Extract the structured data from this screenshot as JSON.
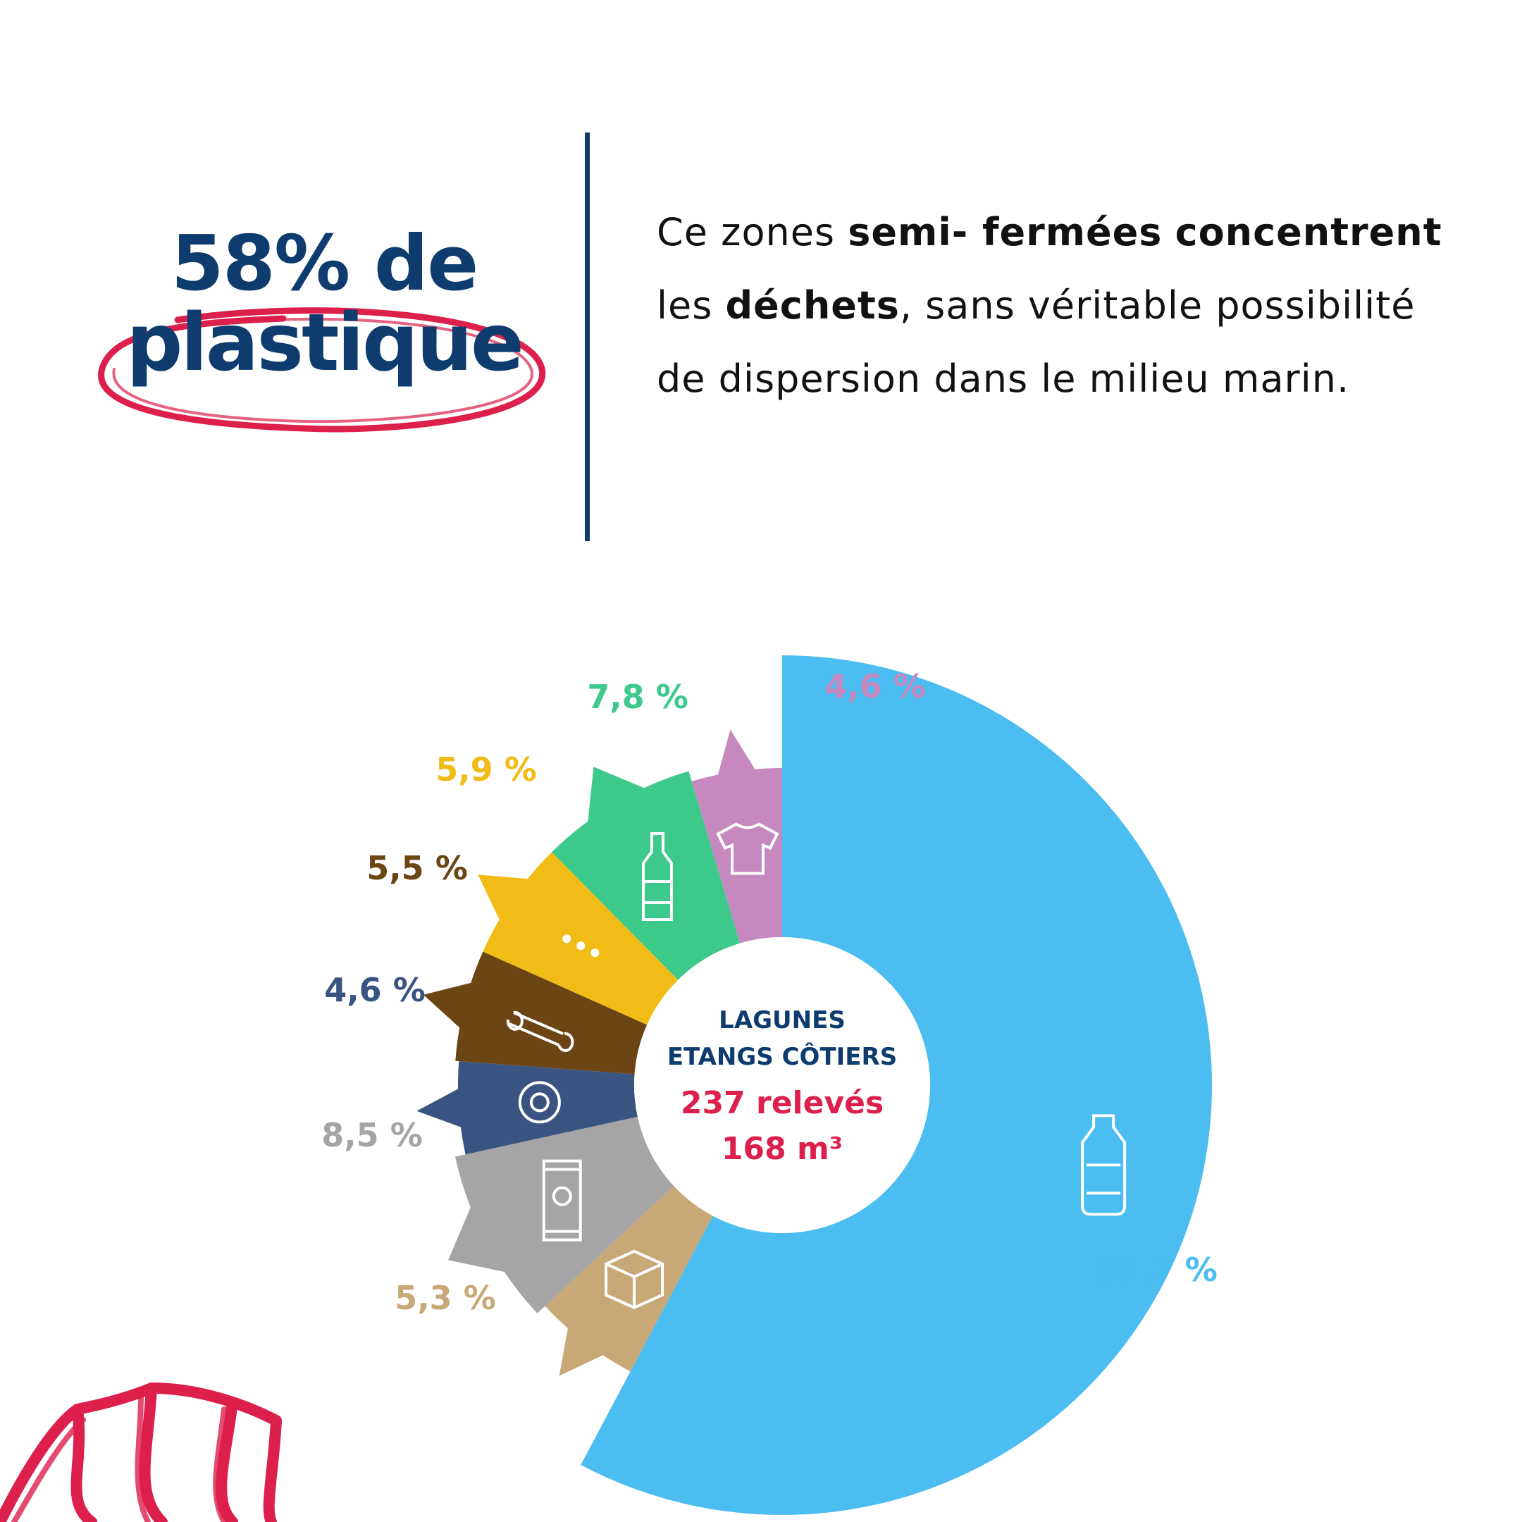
{
  "headline": {
    "line1": "58% de",
    "line2": "plastique"
  },
  "paragraph": {
    "p1": "Ce zones ",
    "b1": "semi- fermées",
    "p2": " ",
    "b2": "concentrent",
    "p3": " les ",
    "b3": "déchets",
    "p4": ", sans véritable possibilité de dispersion dans le milieu marin."
  },
  "center": {
    "line1": "LAGUNES",
    "line2": "ETANGS CÔTIERS",
    "line3": "237 relevés",
    "line4": "168 m³"
  },
  "colors": {
    "navy": "#0e3c6e",
    "red": "#dc1f4b"
  },
  "chart_data": {
    "type": "pie",
    "donut": true,
    "start": "top",
    "direction": "clockwise",
    "slices": [
      {
        "label": "57,7 %",
        "value": 57.7,
        "color": "#4bbdf0",
        "icon": "plastic-bottle-icon"
      },
      {
        "label": "5,3 %",
        "value": 5.3,
        "color": "#c9a877",
        "icon": "cardboard-box-icon"
      },
      {
        "label": "8,5 %",
        "value": 8.5,
        "color": "#a5a5a5",
        "icon": "can-icon"
      },
      {
        "label": "4,6 %",
        "value": 4.6,
        "color": "#3a5482",
        "icon": "tire-icon"
      },
      {
        "label": "5,5 %",
        "value": 5.5,
        "color": "#6b4514",
        "icon": "wood-log-icon"
      },
      {
        "label": "5,9 %",
        "value": 5.9,
        "color": "#f2bc17",
        "icon": "more-dots-icon"
      },
      {
        "label": "7,8 %",
        "value": 7.8,
        "color": "#3cc98a",
        "icon": "glass-bottle-icon"
      },
      {
        "label": "4,6 %",
        "value": 4.6,
        "color": "#c689bf",
        "icon": "tshirt-icon"
      }
    ]
  }
}
